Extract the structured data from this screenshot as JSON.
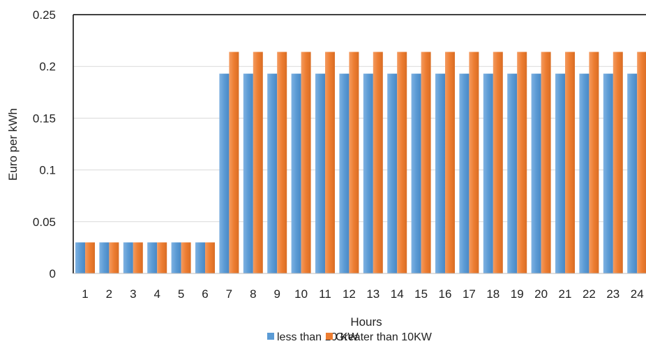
{
  "chart_data": {
    "type": "bar",
    "title": "",
    "xlabel": "Hours",
    "ylabel": "Euro per kWh",
    "ylim": [
      0,
      0.25
    ],
    "yticks": [
      0,
      0.05,
      0.1,
      0.15,
      0.2,
      0.25
    ],
    "ytick_labels": [
      "0",
      "0.05",
      "0.1",
      "0.15",
      "0.2",
      "0.25"
    ],
    "grid": true,
    "legend_position": "bottom",
    "categories": [
      "1",
      "2",
      "3",
      "4",
      "5",
      "6",
      "7",
      "8",
      "9",
      "10",
      "11",
      "12",
      "13",
      "14",
      "15",
      "16",
      "17",
      "18",
      "19",
      "20",
      "21",
      "22",
      "23",
      "24"
    ],
    "series": [
      {
        "name": "less than 10 KW",
        "color": "#5b9bd5",
        "values": [
          0.03,
          0.03,
          0.03,
          0.03,
          0.03,
          0.03,
          0.193,
          0.193,
          0.193,
          0.193,
          0.193,
          0.193,
          0.193,
          0.193,
          0.193,
          0.193,
          0.193,
          0.193,
          0.193,
          0.193,
          0.193,
          0.193,
          0.193,
          0.193
        ]
      },
      {
        "name": "Greater than 10KW",
        "color": "#ed7d31",
        "values": [
          0.03,
          0.03,
          0.03,
          0.03,
          0.03,
          0.03,
          0.214,
          0.214,
          0.214,
          0.214,
          0.214,
          0.214,
          0.214,
          0.214,
          0.214,
          0.214,
          0.214,
          0.214,
          0.214,
          0.214,
          0.214,
          0.214,
          0.214,
          0.214
        ]
      }
    ]
  }
}
